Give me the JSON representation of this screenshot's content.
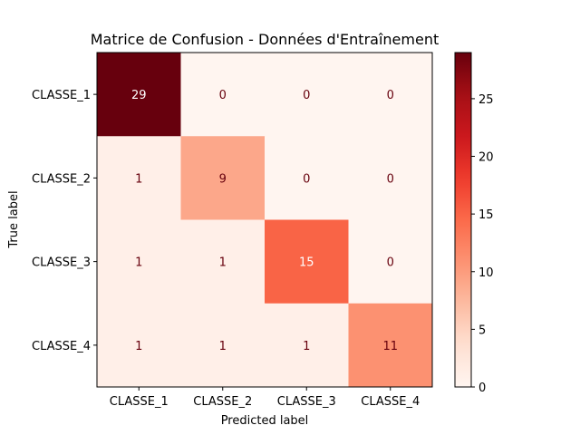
{
  "chart_data": {
    "type": "heatmap",
    "title": "Matrice de Confusion - Données d'Entraînement",
    "xlabel": "Predicted label",
    "ylabel": "True label",
    "x_categories": [
      "CLASSE_1",
      "CLASSE_2",
      "CLASSE_3",
      "CLASSE_4"
    ],
    "y_categories": [
      "CLASSE_1",
      "CLASSE_2",
      "CLASSE_3",
      "CLASSE_4"
    ],
    "values": [
      [
        29,
        0,
        0,
        0
      ],
      [
        1,
        9,
        0,
        0
      ],
      [
        1,
        1,
        15,
        0
      ],
      [
        1,
        1,
        1,
        11
      ]
    ],
    "colorbar": {
      "min": 0,
      "max": 29,
      "ticks": [
        0,
        5,
        10,
        15,
        20,
        25
      ],
      "colormap": "Reds"
    }
  }
}
